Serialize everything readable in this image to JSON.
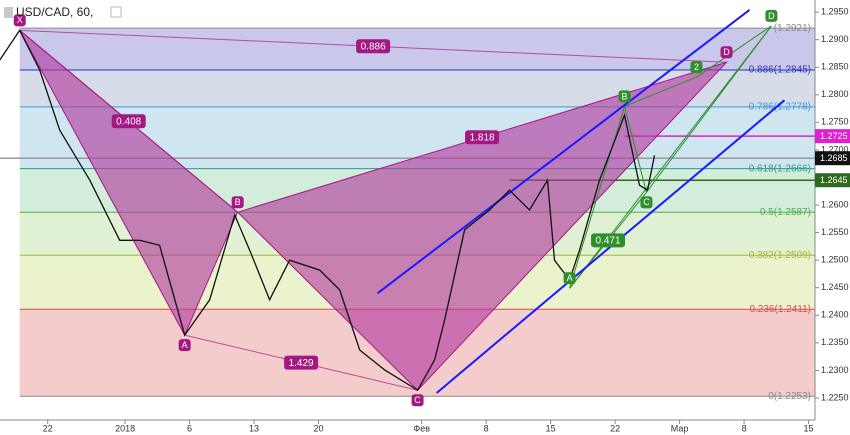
{
  "chart_data": {
    "type": "line",
    "title": "USD/CAD, 60,",
    "color": "#111111",
    "xlim": [
      -3.7,
      59.5
    ],
    "ylim": [
      1.221,
      1.2972
    ],
    "xticks": [
      {
        "value": 0,
        "label": "22"
      },
      {
        "value": 6,
        "label": "2018"
      },
      {
        "value": 11,
        "label": "6"
      },
      {
        "value": 16,
        "label": "13"
      },
      {
        "value": 21,
        "label": "20"
      },
      {
        "value": 29,
        "label": "Фев"
      },
      {
        "value": 34,
        "label": "8"
      },
      {
        "value": 39,
        "label": "15"
      },
      {
        "value": 44,
        "label": "22"
      },
      {
        "value": 49,
        "label": "Мар"
      },
      {
        "value": 54,
        "label": "8"
      },
      {
        "value": 59,
        "label": "15"
      }
    ],
    "yticks": [
      {
        "value": 1.225,
        "label": "1.2250"
      },
      {
        "value": 1.23,
        "label": "1.2300"
      },
      {
        "value": 1.235,
        "label": "1.2350"
      },
      {
        "value": 1.24,
        "label": "1.2400"
      },
      {
        "value": 1.245,
        "label": "1.2450"
      },
      {
        "value": 1.25,
        "label": "1.2500"
      },
      {
        "value": 1.255,
        "label": "1.2550"
      },
      {
        "value": 1.26,
        "label": "1.2600"
      },
      {
        "value": 1.265,
        "label": "1.2650"
      },
      {
        "value": 1.27,
        "label": "1.2700"
      },
      {
        "value": 1.275,
        "label": "1.2750"
      },
      {
        "value": 1.28,
        "label": "1.2800"
      },
      {
        "value": 1.285,
        "label": "1.2850"
      },
      {
        "value": 1.29,
        "label": "1.2900"
      },
      {
        "value": 1.295,
        "label": "1.2950"
      }
    ],
    "x": [
      -3.72,
      -2.17,
      -0.62,
      0.93,
      3.26,
      5.58,
      7.13,
      8.68,
      10.62,
      12.56,
      14.5,
      15.66,
      17.21,
      18.76,
      21.09,
      22.64,
      24.19,
      26.12,
      28.68,
      30.0,
      30.78,
      32.33,
      34.26,
      35.81,
      37.36,
      38.76,
      39.3,
      40.47,
      41.24,
      42.79,
      44.73,
      45.89,
      46.51,
      47.05
    ],
    "values": [
      1.2863,
      1.2917,
      1.2845,
      1.2736,
      1.2645,
      1.2536,
      1.2536,
      1.2527,
      1.2364,
      1.2428,
      1.2582,
      1.2518,
      1.2428,
      1.25,
      1.2482,
      1.2446,
      1.2337,
      1.2301,
      1.2264,
      1.2319,
      1.2391,
      1.2555,
      1.2591,
      1.2627,
      1.2591,
      1.2645,
      1.25,
      1.2464,
      1.2518,
      1.2645,
      1.2763,
      1.2636,
      1.2627,
      1.269
    ],
    "fib": {
      "start": -2.17,
      "levels": [
        {
          "value": 1.2253,
          "label": "0(1.2253)",
          "color": "#888888"
        },
        {
          "value": 1.2411,
          "label": "0.236(1.2411)",
          "color": "#d84a4a"
        },
        {
          "value": 1.2509,
          "label": "0.382(1.2509)",
          "color": "#a6b63a"
        },
        {
          "value": 1.2587,
          "label": "0.5(1.2587)",
          "color": "#4caf50"
        },
        {
          "value": 1.2666,
          "label": "0.618(1.2666)",
          "color": "#2e9a88"
        },
        {
          "value": 1.2778,
          "label": "0.786(1.2778)",
          "color": "#3d9bd6"
        },
        {
          "value": 1.2845,
          "label": "0.886(1.2845)",
          "color": "#2a35b8"
        },
        {
          "value": 1.2921,
          "label": "(1.2921)",
          "color": "#888888"
        }
      ],
      "zone_colors": [
        "#f4cccc",
        "#ebf3cd",
        "#e1f1d4",
        "#d2eedb",
        "#cfe6f1",
        "#d6dce8",
        "#c9c8ea"
      ]
    },
    "patterns": [
      {
        "color": "#a41883",
        "fill": "#b1389c",
        "points": [
          {
            "label": "X",
            "x": -2.17,
            "y": 1.2917
          },
          {
            "label": "A",
            "x": 10.62,
            "y": 1.2364
          },
          {
            "label": "B",
            "x": 14.73,
            "y": 1.2587
          },
          {
            "label": "C",
            "x": 28.68,
            "y": 1.2264
          },
          {
            "label": "D",
            "x": 52.64,
            "y": 1.2859
          }
        ],
        "ratios": [
          0.886,
          0.408,
          1.818,
          1.429
        ]
      },
      {
        "color": "#2f8f2f",
        "fill": "none",
        "points": [
          {
            "label": "A",
            "x": 40.47,
            "y": 1.2449
          },
          {
            "label": "B",
            "x": 44.73,
            "y": 1.2779
          },
          {
            "label": "C",
            "x": 46.43,
            "y": 1.2623
          },
          {
            "label": "2",
            "x": 50.31,
            "y": 1.2832
          },
          {
            "label": "D",
            "x": 56.12,
            "y": 1.2925
          }
        ],
        "ratios": [
          0.471
        ]
      }
    ],
    "trendlines": [
      {
        "color": "#1a1aff",
        "x": [
          25.58,
          54.42
        ],
        "values": [
          1.244,
          1.2954
        ]
      },
      {
        "color": "#1a1aff",
        "x": [
          30.16,
          57.13
        ],
        "values": [
          1.2259,
          1.279
        ]
      }
    ],
    "price_lines": [
      {
        "value": 1.2725,
        "start": 44.73,
        "color": "#e020d0"
      },
      {
        "value": 1.2645,
        "start": 35.81,
        "color": "#2d6a1e"
      },
      {
        "value": 1.2685,
        "start": -3.7,
        "color": "#9a9a9a",
        "marker": "#111111"
      }
    ]
  }
}
